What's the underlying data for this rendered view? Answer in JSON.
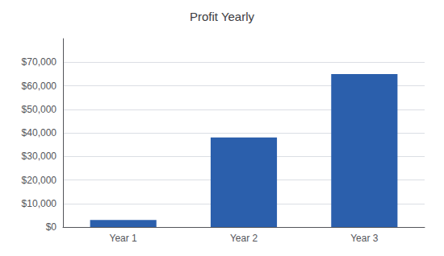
{
  "chart_data": {
    "type": "bar",
    "title": "Profit Yearly",
    "categories": [
      "Year 1",
      "Year 2",
      "Year 3"
    ],
    "values": [
      3000,
      38000,
      65000
    ],
    "color": "#2b5fac",
    "ylim": [
      0,
      80000
    ],
    "yticks": [
      {
        "value": 0,
        "label": "$0"
      },
      {
        "value": 10000,
        "label": "$10,000"
      },
      {
        "value": 20000,
        "label": "$20,000"
      },
      {
        "value": 30000,
        "label": "$30,000"
      },
      {
        "value": 40000,
        "label": "$40,000"
      },
      {
        "value": 50000,
        "label": "$50,000"
      },
      {
        "value": 60000,
        "label": "$60,000"
      },
      {
        "value": 70000,
        "label": "$70,000"
      }
    ],
    "grid": true
  }
}
